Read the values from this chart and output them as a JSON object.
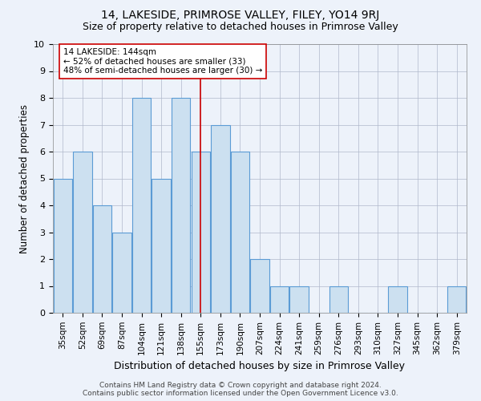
{
  "title": "14, LAKESIDE, PRIMROSE VALLEY, FILEY, YO14 9RJ",
  "subtitle": "Size of property relative to detached houses in Primrose Valley",
  "xlabel": "Distribution of detached houses by size in Primrose Valley",
  "ylabel": "Number of detached properties",
  "categories": [
    "35sqm",
    "52sqm",
    "69sqm",
    "87sqm",
    "104sqm",
    "121sqm",
    "138sqm",
    "155sqm",
    "173sqm",
    "190sqm",
    "207sqm",
    "224sqm",
    "241sqm",
    "259sqm",
    "276sqm",
    "293sqm",
    "310sqm",
    "327sqm",
    "345sqm",
    "362sqm",
    "379sqm"
  ],
  "values": [
    5,
    6,
    4,
    3,
    8,
    5,
    8,
    6,
    7,
    6,
    2,
    1,
    1,
    0,
    1,
    0,
    0,
    1,
    0,
    0,
    1
  ],
  "bar_color": "#cce0f0",
  "bar_edge_color": "#5b9bd5",
  "highlight_line_index": 7,
  "highlight_line_color": "#cc0000",
  "ylim": [
    0,
    10
  ],
  "yticks": [
    0,
    1,
    2,
    3,
    4,
    5,
    6,
    7,
    8,
    9,
    10
  ],
  "annotation_text": "14 LAKESIDE: 144sqm\n← 52% of detached houses are smaller (33)\n48% of semi-detached houses are larger (30) →",
  "annotation_box_color": "#ffffff",
  "annotation_box_edge": "#cc0000",
  "footer_line1": "Contains HM Land Registry data © Crown copyright and database right 2024.",
  "footer_line2": "Contains public sector information licensed under the Open Government Licence v3.0.",
  "background_color": "#edf2fa",
  "grid_color": "#b0b8cc",
  "title_fontsize": 10,
  "subtitle_fontsize": 9,
  "axis_label_fontsize": 8.5,
  "tick_fontsize": 7.5,
  "footer_fontsize": 6.5,
  "annotation_fontsize": 7.5
}
